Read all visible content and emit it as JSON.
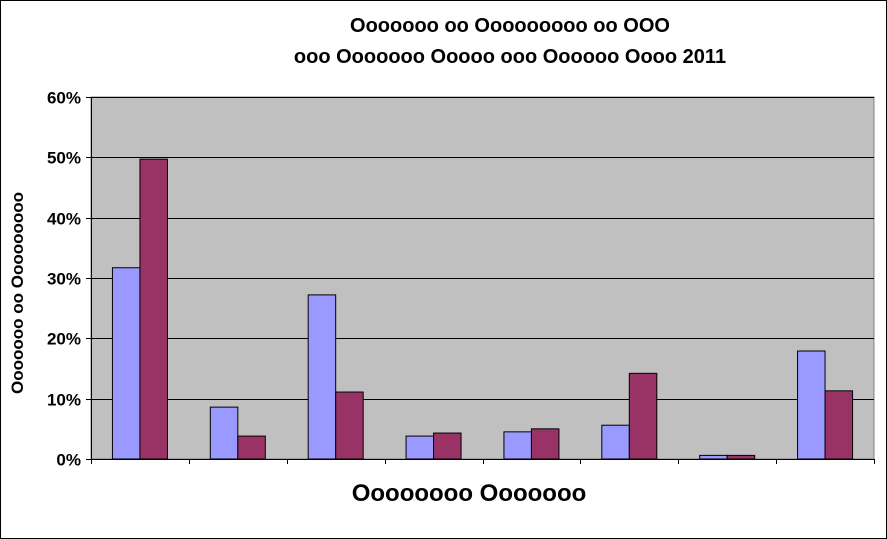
{
  "chart_data": {
    "type": "bar",
    "title_lines": [
      "Ooooooo oo Ooooooooo oo OOO",
      "ooo Ooooooo Ooooo ooo Oooooo Oooo 2011"
    ],
    "xlabel": "Oooooooo Ooooooo",
    "ylabel": "Ooooooo oo Ooooooooo",
    "ylim": [
      0,
      0.6
    ],
    "yticks": [
      0,
      0.1,
      0.2,
      0.3,
      0.4,
      0.5,
      0.6
    ],
    "ytick_labels": [
      "0%",
      "10%",
      "20%",
      "30%",
      "40%",
      "50%",
      "60%"
    ],
    "categories": [
      "",
      "",
      "",
      "",
      "",
      "",
      "",
      ""
    ],
    "series": [
      {
        "values": [
          0.317,
          0.086,
          0.272,
          0.038,
          0.045,
          0.056,
          0.006,
          0.179
        ],
        "color": "#9999ff"
      },
      {
        "values": [
          0.497,
          0.038,
          0.111,
          0.043,
          0.05,
          0.142,
          0.006,
          0.113
        ],
        "color": "#993366"
      }
    ],
    "grid": true,
    "plot_background": "#c0c0c0",
    "gridline_color": "#000000"
  }
}
